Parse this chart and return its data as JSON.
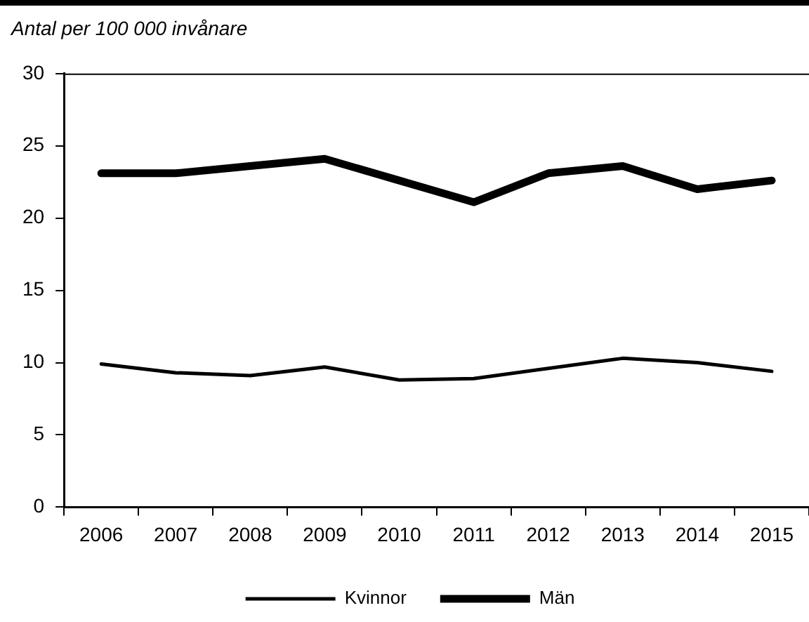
{
  "chart_data": {
    "type": "line",
    "ylabel": "Antal per 100 000 invånare",
    "categories": [
      "2006",
      "2007",
      "2008",
      "2009",
      "2010",
      "2011",
      "2012",
      "2013",
      "2014",
      "2015"
    ],
    "series": [
      {
        "name": "Kvinnor",
        "color": "#000000",
        "values": [
          9.9,
          9.3,
          9.1,
          9.7,
          8.8,
          8.9,
          9.6,
          10.3,
          10.0,
          9.4
        ]
      },
      {
        "name": "Män",
        "color": "#000000",
        "values": [
          23.1,
          23.1,
          23.6,
          24.1,
          22.6,
          21.1,
          23.1,
          23.6,
          22.0,
          22.6
        ]
      }
    ],
    "ylim": [
      0,
      30
    ],
    "yticks": [
      0,
      5,
      10,
      15,
      20,
      25,
      30
    ],
    "grid": false,
    "legend": "bottom",
    "marker": "none",
    "line_style": "solid"
  }
}
